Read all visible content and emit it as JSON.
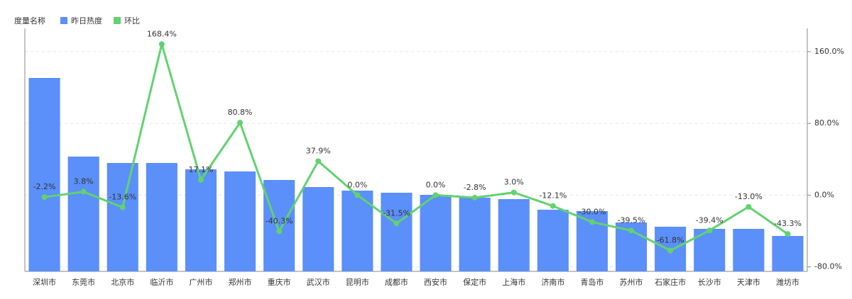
{
  "chart_data": {
    "type": "bar-line",
    "legend_title": "度量名称",
    "categories": [
      "深圳市",
      "东莞市",
      "北京市",
      "临沂市",
      "广州市",
      "郑州市",
      "重庆市",
      "武汉市",
      "昆明市",
      "成都市",
      "西安市",
      "保定市",
      "上海市",
      "济南市",
      "青岛市",
      "苏州市",
      "石家庄市",
      "长沙市",
      "天津市",
      "潍坊市"
    ],
    "series": [
      {
        "name": "昨日热度",
        "color": "#5b8ff9",
        "type": "bar",
        "values": [
          273,
          162,
          153,
          153,
          144,
          141,
          129,
          119,
          114,
          111,
          108,
          104,
          102,
          87,
          85,
          69,
          63,
          60,
          60,
          50
        ]
      },
      {
        "name": "环比",
        "color": "#62d26f",
        "type": "line",
        "axis": "y2",
        "values": [
          -2.2,
          3.8,
          -13.6,
          168.4,
          17.1,
          80.8,
          -40.3,
          37.9,
          0.0,
          -31.5,
          0.0,
          -2.8,
          3.0,
          -12.1,
          -30.0,
          -39.5,
          -61.8,
          -39.4,
          -13.0,
          -43.3
        ],
        "value_labels": [
          "-2.2%",
          "3.8%",
          "-13.6%",
          "168.4%",
          "17.1%",
          "80.8%",
          "-40.3%",
          "37.9%",
          "0.0%",
          "-31.5%",
          "0.0%",
          "-2.8%",
          "3.0%",
          "-12.1%",
          "-30.0%",
          "-39.5%",
          "-61.8%",
          "-39.4%",
          "-13.0%",
          "-43.3%"
        ]
      }
    ],
    "ylim": [
      0,
      343
    ],
    "y2lim": [
      -85,
      186
    ],
    "y2ticks": [
      {
        "value": -80,
        "label": "-80.0%"
      },
      {
        "value": 0,
        "label": "0.0%"
      },
      {
        "value": 80,
        "label": "80.0%"
      },
      {
        "value": 160,
        "label": "160.0%"
      }
    ],
    "grid": true
  }
}
